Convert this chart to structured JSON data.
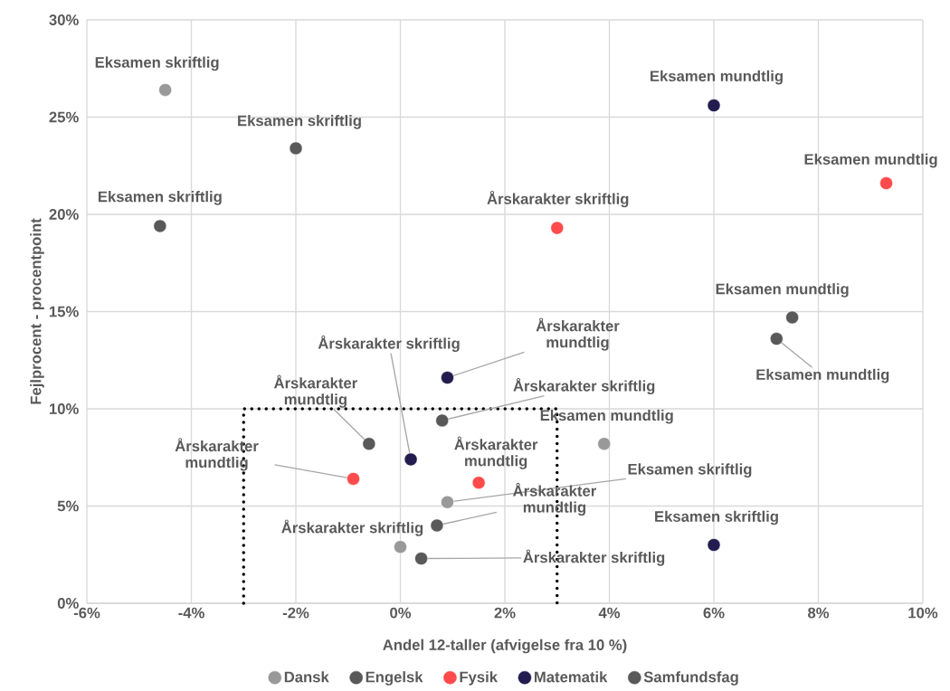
{
  "chart_data": {
    "type": "scatter",
    "xlabel": "Andel 12-taller (afvigelse fra 10 %)",
    "ylabel": "Fejlprocent - procentpoint",
    "xlim": [
      -6,
      10
    ],
    "ylim": [
      0,
      30
    ],
    "xticks": [
      {
        "value": -6,
        "label": "-6%"
      },
      {
        "value": -4,
        "label": "-4%"
      },
      {
        "value": -2,
        "label": "-2%"
      },
      {
        "value": 0,
        "label": "0%"
      },
      {
        "value": 2,
        "label": "2%"
      },
      {
        "value": 4,
        "label": "4%"
      },
      {
        "value": 6,
        "label": "6%"
      },
      {
        "value": 8,
        "label": "8%"
      },
      {
        "value": 10,
        "label": "10%"
      }
    ],
    "yticks": [
      {
        "value": 0,
        "label": "0%"
      },
      {
        "value": 5,
        "label": "5%"
      },
      {
        "value": 10,
        "label": "10%"
      },
      {
        "value": 15,
        "label": "15%"
      },
      {
        "value": 20,
        "label": "20%"
      },
      {
        "value": 25,
        "label": "25%"
      },
      {
        "value": 30,
        "label": "30%"
      }
    ],
    "grid": true,
    "legend": "bottom",
    "marker": "circle",
    "series": [
      {
        "name": "Dansk",
        "color": "#999999",
        "x": [
          -4.5,
          3.9,
          0.9,
          0.0
        ],
        "values": [
          26.4,
          8.2,
          5.2,
          2.9
        ]
      },
      {
        "name": "Engelsk",
        "color": "#595959",
        "x": [
          -2.0,
          7.5,
          0.8,
          -0.6
        ],
        "values": [
          23.4,
          14.7,
          9.4,
          8.2
        ]
      },
      {
        "name": "Fysik",
        "color": "#ff4b4b",
        "x": [
          3.0,
          9.3,
          -0.9,
          1.5
        ],
        "values": [
          19.3,
          21.6,
          6.4,
          6.2
        ]
      },
      {
        "name": "Matematik",
        "color": "#231c4f",
        "x": [
          6.0,
          6.0,
          0.9,
          0.2
        ],
        "values": [
          25.6,
          3.0,
          11.6,
          7.4
        ]
      },
      {
        "name": "Samfundsfag",
        "color": "#595959",
        "x": [
          -4.6,
          7.2,
          0.4,
          0.7
        ],
        "values": [
          19.4,
          13.6,
          2.3,
          4.0
        ]
      },
      {
        "type": "line",
        "color": "#000000",
        "marker": "none",
        "line_style": "dotted",
        "x": [
          -3,
          -3,
          3,
          3
        ],
        "values": [
          0,
          10,
          10,
          0
        ]
      }
    ],
    "annotations": [
      {
        "text": "Eksamen skriftlig",
        "x": -4.5,
        "y": 26.4
      },
      {
        "text": "Eksamen mundtlig",
        "x": 3.9,
        "y": 8.2
      },
      {
        "text": "Eksamen skriftlig",
        "x": 0.9,
        "y": 5.2
      },
      {
        "text": "Årskarakter skriftlig",
        "x": 0.0,
        "y": 2.9
      },
      {
        "text": "Eksamen skriftlig",
        "x": -2.0,
        "y": 23.4
      },
      {
        "text": "Eksamen mundtlig",
        "x": 7.5,
        "y": 14.7
      },
      {
        "text": "Årskarakter skriftlig",
        "x": 0.8,
        "y": 9.4
      },
      {
        "text": "Årskarakter mundtlig",
        "x": -0.6,
        "y": 8.2
      },
      {
        "text": "Årskarakter skriftlig",
        "x": 3.0,
        "y": 19.3
      },
      {
        "text": "Eksamen mundtlig",
        "x": 9.3,
        "y": 21.6
      },
      {
        "text": "Årskarakter mundtlig",
        "x": -0.9,
        "y": 6.4
      },
      {
        "text": "Årskarakter mundtlig",
        "x": 1.5,
        "y": 6.2
      },
      {
        "text": "Eksamen mundtlig",
        "x": 6.0,
        "y": 25.6
      },
      {
        "text": "Eksamen skriftlig",
        "x": 6.0,
        "y": 3.0
      },
      {
        "text": "Årskarakter mundtlig",
        "x": 0.9,
        "y": 11.6
      },
      {
        "text": "Årskarakter skriftlig",
        "x": 0.2,
        "y": 7.4
      },
      {
        "text": "Eksamen skriftlig",
        "x": -4.6,
        "y": 19.4
      },
      {
        "text": "Eksamen mundtlig",
        "x": 7.2,
        "y": 13.6
      },
      {
        "text": "Årskarakter skriftlig",
        "x": 0.4,
        "y": 2.3
      },
      {
        "text": "Årskarakter mundtlig",
        "x": 0.7,
        "y": 4.0
      }
    ]
  }
}
